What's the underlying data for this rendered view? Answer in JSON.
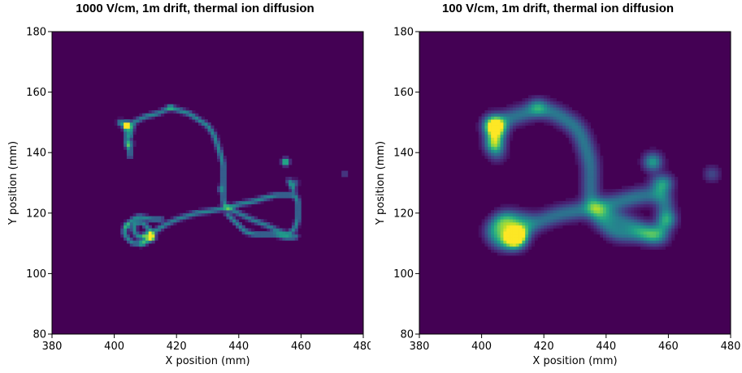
{
  "chart_data": [
    {
      "type": "heatmap",
      "title": "1000 V/cm, 1m drift, thermal ion diffusion",
      "xlabel": "X position (mm)",
      "ylabel": "Y position (mm)",
      "xlim": [
        380,
        480
      ],
      "ylim": [
        80,
        180
      ],
      "xticks": [
        380,
        400,
        420,
        440,
        460,
        480
      ],
      "yticks": [
        80,
        100,
        120,
        140,
        160,
        180
      ],
      "colormap": "viridis",
      "background_color": "#440154",
      "blur_mm": 0.6,
      "track_intensity": 0.28,
      "track": [
        [
          405,
          145
        ],
        [
          406,
          150
        ],
        [
          410,
          152
        ],
        [
          414,
          153
        ],
        [
          418,
          155
        ],
        [
          421,
          154
        ],
        [
          424,
          153
        ],
        [
          427,
          151
        ],
        [
          430,
          149
        ],
        [
          432,
          146
        ],
        [
          433,
          143
        ],
        [
          434,
          140
        ],
        [
          435,
          136
        ],
        [
          435,
          132
        ],
        [
          435,
          128
        ],
        [
          435,
          124
        ],
        [
          436,
          122
        ],
        [
          440,
          120
        ],
        [
          444,
          118
        ],
        [
          449,
          116
        ],
        [
          453,
          114
        ],
        [
          456,
          113
        ],
        [
          458,
          115
        ],
        [
          459,
          118
        ],
        [
          459,
          121
        ],
        [
          459,
          124
        ],
        [
          458,
          126
        ],
        [
          455,
          126
        ],
        [
          452,
          126
        ],
        [
          448,
          125
        ],
        [
          445,
          124
        ],
        [
          440,
          123
        ],
        [
          437,
          122
        ],
        [
          432,
          121
        ],
        [
          426,
          120
        ],
        [
          420,
          118
        ],
        [
          416,
          116
        ],
        [
          413,
          114
        ],
        [
          410,
          113
        ],
        [
          408,
          112
        ],
        [
          407,
          113
        ],
        [
          406,
          115
        ],
        [
          407,
          117
        ],
        [
          409,
          117
        ],
        [
          411,
          115
        ],
        [
          412,
          113
        ],
        [
          411,
          111
        ],
        [
          409,
          110
        ],
        [
          406,
          110
        ],
        [
          404,
          112
        ],
        [
          403,
          114
        ],
        [
          404,
          116
        ],
        [
          406,
          118
        ],
        [
          408,
          119
        ],
        [
          412,
          118
        ],
        [
          416,
          118
        ]
      ],
      "track2": [
        [
          404,
          150
        ],
        [
          404,
          146
        ],
        [
          404,
          143
        ],
        [
          405,
          141
        ],
        [
          405,
          138
        ]
      ],
      "track3": [
        [
          436,
          120
        ],
        [
          438,
          118
        ],
        [
          440,
          116
        ],
        [
          442,
          114
        ],
        [
          445,
          113
        ],
        [
          448,
          113
        ],
        [
          452,
          113
        ],
        [
          455,
          112
        ],
        [
          458,
          112
        ],
        [
          459,
          113
        ]
      ],
      "track4": [
        [
          456,
          131
        ],
        [
          457,
          129
        ],
        [
          458,
          127
        ]
      ],
      "blobs": [
        {
          "x": 404,
          "y": 149,
          "value": 1.0,
          "sigma": 0.9
        },
        {
          "x": 402,
          "y": 150,
          "value": 0.55,
          "sigma": 0.7
        },
        {
          "x": 405,
          "y": 143,
          "value": 0.45,
          "sigma": 0.8
        },
        {
          "x": 412,
          "y": 112,
          "value": 1.0,
          "sigma": 0.8
        },
        {
          "x": 410,
          "y": 112,
          "value": 0.5,
          "sigma": 0.7
        },
        {
          "x": 455,
          "y": 137,
          "value": 0.85,
          "sigma": 0.8
        },
        {
          "x": 474,
          "y": 133,
          "value": 0.3,
          "sigma": 0.6
        },
        {
          "x": 458,
          "y": 130,
          "value": 0.35,
          "sigma": 0.8
        },
        {
          "x": 434,
          "y": 128,
          "value": 0.3,
          "sigma": 0.7
        },
        {
          "x": 418,
          "y": 155,
          "value": 0.32,
          "sigma": 0.7
        },
        {
          "x": 404,
          "y": 116,
          "value": 0.35,
          "sigma": 0.7
        },
        {
          "x": 409,
          "y": 110,
          "value": 0.35,
          "sigma": 0.7
        }
      ]
    },
    {
      "type": "heatmap",
      "title": "100 V/cm, 1m drift, thermal ion diffusion",
      "xlabel": "X position (mm)",
      "ylabel": "Y position (mm)",
      "xlim": [
        380,
        480
      ],
      "ylim": [
        80,
        180
      ],
      "xticks": [
        380,
        400,
        420,
        440,
        460,
        480
      ],
      "yticks": [
        80,
        100,
        120,
        140,
        160,
        180
      ],
      "colormap": "viridis",
      "background_color": "#440154",
      "blur_mm": 2.0,
      "track_intensity": 0.24,
      "track": [
        [
          405,
          145
        ],
        [
          406,
          150
        ],
        [
          410,
          152
        ],
        [
          414,
          153
        ],
        [
          418,
          155
        ],
        [
          421,
          154
        ],
        [
          424,
          153
        ],
        [
          427,
          151
        ],
        [
          430,
          149
        ],
        [
          432,
          146
        ],
        [
          433,
          143
        ],
        [
          434,
          140
        ],
        [
          435,
          136
        ],
        [
          435,
          132
        ],
        [
          435,
          128
        ],
        [
          435,
          124
        ],
        [
          436,
          122
        ],
        [
          440,
          120
        ],
        [
          444,
          118
        ],
        [
          449,
          116
        ],
        [
          453,
          114
        ],
        [
          456,
          113
        ],
        [
          458,
          115
        ],
        [
          459,
          118
        ],
        [
          459,
          121
        ],
        [
          459,
          124
        ],
        [
          458,
          126
        ],
        [
          455,
          126
        ],
        [
          452,
          126
        ],
        [
          448,
          125
        ],
        [
          445,
          124
        ],
        [
          440,
          123
        ],
        [
          437,
          122
        ],
        [
          432,
          121
        ],
        [
          426,
          120
        ],
        [
          420,
          118
        ],
        [
          416,
          116
        ],
        [
          413,
          114
        ],
        [
          410,
          113
        ],
        [
          408,
          112
        ],
        [
          407,
          113
        ],
        [
          406,
          115
        ],
        [
          407,
          117
        ],
        [
          409,
          117
        ],
        [
          411,
          115
        ],
        [
          412,
          113
        ],
        [
          411,
          111
        ],
        [
          409,
          110
        ],
        [
          406,
          110
        ],
        [
          404,
          112
        ],
        [
          403,
          114
        ],
        [
          404,
          116
        ],
        [
          406,
          118
        ],
        [
          408,
          119
        ],
        [
          412,
          118
        ],
        [
          416,
          118
        ]
      ],
      "track2": [
        [
          404,
          150
        ],
        [
          404,
          146
        ],
        [
          404,
          143
        ],
        [
          405,
          141
        ],
        [
          405,
          138
        ]
      ],
      "track3": [
        [
          436,
          120
        ],
        [
          438,
          118
        ],
        [
          440,
          116
        ],
        [
          442,
          114
        ],
        [
          445,
          113
        ],
        [
          448,
          113
        ],
        [
          452,
          113
        ],
        [
          455,
          112
        ],
        [
          458,
          112
        ],
        [
          459,
          113
        ]
      ],
      "track4": [
        [
          456,
          131
        ],
        [
          457,
          129
        ],
        [
          458,
          127
        ]
      ],
      "blobs": [
        {
          "x": 404,
          "y": 149,
          "value": 1.0,
          "sigma": 2.2
        },
        {
          "x": 404,
          "y": 143,
          "value": 0.45,
          "sigma": 2.0
        },
        {
          "x": 411,
          "y": 112,
          "value": 1.0,
          "sigma": 2.3
        },
        {
          "x": 455,
          "y": 137,
          "value": 0.55,
          "sigma": 2.0
        },
        {
          "x": 474,
          "y": 133,
          "value": 0.22,
          "sigma": 1.8
        },
        {
          "x": 459,
          "y": 130,
          "value": 0.35,
          "sigma": 2.0
        },
        {
          "x": 418,
          "y": 155,
          "value": 0.28,
          "sigma": 2.0
        },
        {
          "x": 460,
          "y": 118,
          "value": 0.3,
          "sigma": 2.0
        }
      ]
    }
  ]
}
